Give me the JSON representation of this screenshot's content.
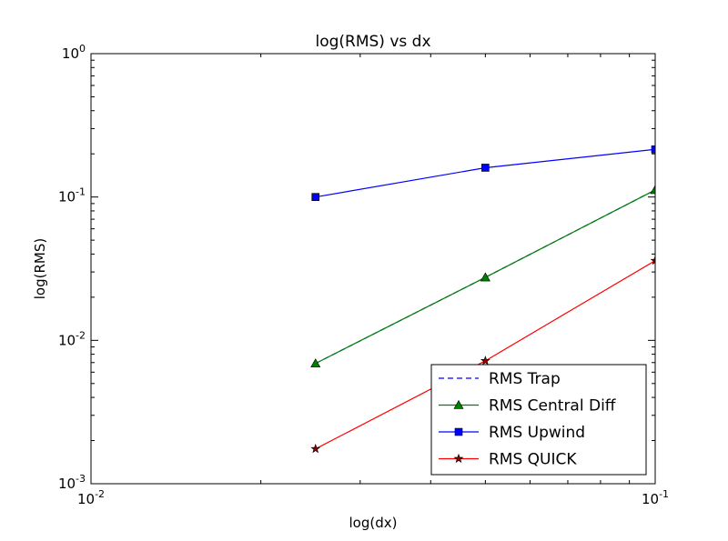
{
  "chart_data": {
    "type": "line",
    "title": "log(RMS) vs dx",
    "xlabel": "log(dx)",
    "ylabel": "log(RMS)",
    "xscale": "log",
    "yscale": "log",
    "xlim": [
      0.01,
      0.1
    ],
    "ylim": [
      0.001,
      1
    ],
    "grid": false,
    "legend_position": "lower-right",
    "x_ticks": [
      {
        "value": 0.01,
        "base": "10",
        "exp": "-2"
      },
      {
        "value": 0.1,
        "base": "10",
        "exp": "-1"
      }
    ],
    "y_ticks": [
      {
        "value": 0.001,
        "base": "10",
        "exp": "-3"
      },
      {
        "value": 0.01,
        "base": "10",
        "exp": "-2"
      },
      {
        "value": 0.1,
        "base": "10",
        "exp": "-1"
      },
      {
        "value": 1,
        "base": "10",
        "exp": "0"
      }
    ],
    "series": [
      {
        "name": "RMS Trap",
        "color": "#0000ff",
        "linestyle": "dashed",
        "marker": "none",
        "x": [
          0.025,
          0.05,
          0.1
        ],
        "y": [
          0.0069,
          0.0275,
          0.112
        ]
      },
      {
        "name": "RMS Central Diff",
        "color": "#008000",
        "linestyle": "solid",
        "marker": "triangle",
        "x": [
          0.025,
          0.05,
          0.1
        ],
        "y": [
          0.0069,
          0.0275,
          0.112
        ]
      },
      {
        "name": "RMS Upwind",
        "color": "#0000ff",
        "linestyle": "solid",
        "marker": "square",
        "x": [
          0.025,
          0.05,
          0.1
        ],
        "y": [
          0.1,
          0.16,
          0.215
        ]
      },
      {
        "name": "RMS QUICK",
        "color": "#ff0000",
        "linestyle": "solid",
        "marker": "star",
        "x": [
          0.025,
          0.05,
          0.1
        ],
        "y": [
          0.00175,
          0.0072,
          0.036
        ]
      }
    ]
  }
}
